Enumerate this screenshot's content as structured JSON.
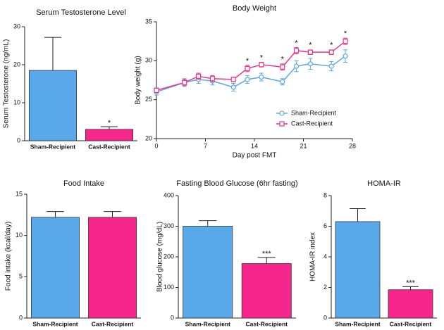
{
  "chart_data": [
    {
      "type": "bar",
      "title": "Serum Testosterone Level",
      "ylabel": "Serum Testosterone (ng/mL)",
      "categories": [
        "Sham-Recipient",
        "Cast-Recipient"
      ],
      "values": [
        18.5,
        3.0
      ],
      "errors": [
        8.7,
        0.7
      ],
      "colors": [
        "#58a8ea",
        "#f7268d"
      ],
      "significance": [
        null,
        "*"
      ],
      "ylim": [
        0,
        30
      ],
      "yticks": [
        0,
        10,
        20,
        30
      ]
    },
    {
      "type": "line",
      "title": "Body Weight",
      "xlabel": "Day post FMT",
      "ylabel": "Body weight (g)",
      "x": [
        0,
        4,
        6,
        8,
        11,
        13,
        15,
        18,
        20,
        22,
        25,
        27
      ],
      "series": [
        {
          "name": "Sham-Recipient",
          "color": "#58a8ea",
          "marker": "circle",
          "values": [
            26.0,
            27.2,
            27.6,
            27.4,
            26.6,
            27.6,
            27.9,
            27.3,
            29.3,
            29.6,
            29.3,
            30.6
          ],
          "errors": [
            0.4,
            0.5,
            0.5,
            0.5,
            0.5,
            0.5,
            0.5,
            0.4,
            0.7,
            0.7,
            0.6,
            0.8
          ]
        },
        {
          "name": "Cast-Recipient",
          "color": "#e8358e",
          "marker": "square",
          "values": [
            26.2,
            27.2,
            28.0,
            27.7,
            27.6,
            29.0,
            29.5,
            29.2,
            31.3,
            31.1,
            31.1,
            32.5
          ],
          "errors": [
            0.3,
            0.4,
            0.4,
            0.4,
            0.3,
            0.4,
            0.3,
            0.4,
            0.4,
            0.3,
            0.3,
            0.4
          ],
          "significance": [
            null,
            null,
            null,
            null,
            null,
            "*",
            "*",
            "*",
            "*",
            "*",
            "*",
            "*"
          ]
        }
      ],
      "xlim": [
        0,
        28
      ],
      "xticks": [
        0,
        7,
        14,
        21,
        28
      ],
      "ylim": [
        20,
        35
      ],
      "yticks": [
        20,
        25,
        30,
        35
      ],
      "legend": "lower right"
    },
    {
      "type": "bar",
      "title": "Food Intake",
      "ylabel": "Food intake (kcal/day)",
      "categories": [
        "Sham-Recipient",
        "Cast-Recipient"
      ],
      "values": [
        12.2,
        12.2
      ],
      "errors": [
        0.7,
        0.7
      ],
      "colors": [
        "#58a8ea",
        "#f7268d"
      ],
      "ylim": [
        0,
        15
      ],
      "yticks": [
        0,
        5,
        10,
        15
      ]
    },
    {
      "type": "bar",
      "title": "Fasting  Blood Glucose (6hr fasting)",
      "ylabel": "Blood glucose (mg/dL)",
      "categories": [
        "Sham-Recipient",
        "Cast-Recipient"
      ],
      "values": [
        300,
        178
      ],
      "errors": [
        18,
        20
      ],
      "colors": [
        "#58a8ea",
        "#f7268d"
      ],
      "significance": [
        null,
        "***"
      ],
      "ylim": [
        0,
        400
      ],
      "yticks": [
        0,
        100,
        200,
        300,
        400
      ]
    },
    {
      "type": "bar",
      "title": "HOMA-IR",
      "ylabel": "HOMA-IR index",
      "categories": [
        "Sham-Recipient",
        "Cast-Recipient"
      ],
      "values": [
        6.3,
        1.85
      ],
      "errors": [
        0.85,
        0.2
      ],
      "colors": [
        "#58a8ea",
        "#f7268d"
      ],
      "significance": [
        null,
        "***"
      ],
      "ylim": [
        0,
        8
      ],
      "yticks": [
        0,
        2,
        4,
        6,
        8
      ]
    }
  ]
}
